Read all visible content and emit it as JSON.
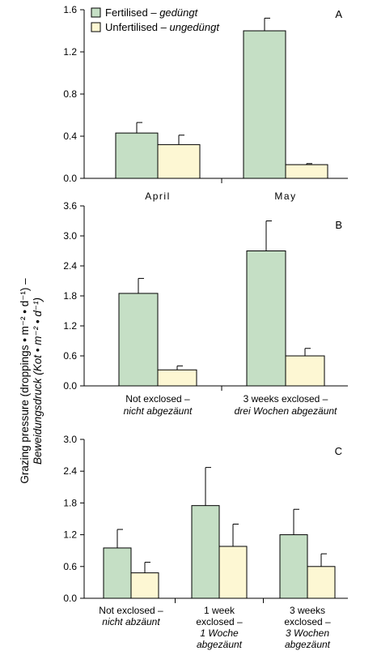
{
  "colors": {
    "fertilised": "#c5dfc5",
    "unfertilised": "#fdf7d3",
    "stroke": "#000000"
  },
  "y_label": {
    "line1": "Grazing pressure (droppings • m⁻² • d⁻¹) –",
    "line2": "Beweidungsdruck (Kot • m⁻² • d⁻¹)"
  },
  "legend": {
    "items": [
      {
        "main": "Fertilised – ",
        "italic": "gedüngt"
      },
      {
        "main": "Unfertilised – ",
        "italic": "ungedüngt"
      }
    ]
  },
  "chart_data": [
    {
      "type": "bar",
      "panel": "A",
      "ylim": [
        0,
        1.6
      ],
      "yticks": [
        "0.0",
        "0.4",
        "0.8",
        "1.2",
        "1.6"
      ],
      "categories": [
        {
          "lines": [
            {
              "text": "April",
              "italic": false
            }
          ]
        },
        {
          "lines": [
            {
              "text": "May",
              "italic": false
            }
          ]
        }
      ],
      "series": [
        {
          "name": "Fertilised – gedüngt",
          "values": [
            0.43,
            1.4
          ],
          "errors": [
            0.1,
            0.12
          ]
        },
        {
          "name": "Unfertilised – ungedüngt",
          "values": [
            0.32,
            0.13
          ],
          "errors": [
            0.09,
            0.01
          ]
        }
      ]
    },
    {
      "type": "bar",
      "panel": "B",
      "ylim": [
        0,
        3.6
      ],
      "yticks": [
        "0.0",
        "0.6",
        "1.2",
        "1.8",
        "2.4",
        "3.0",
        "3.6"
      ],
      "categories": [
        {
          "lines": [
            {
              "text": "Not exclosed –",
              "italic": false
            },
            {
              "text": "nicht abgezäunt",
              "italic": true
            }
          ]
        },
        {
          "lines": [
            {
              "text": "3 weeks exclosed –",
              "italic": false
            },
            {
              "text": "drei Wochen abgezäunt",
              "italic": true
            }
          ]
        }
      ],
      "series": [
        {
          "name": "Fertilised – gedüngt",
          "values": [
            1.85,
            2.7
          ],
          "errors": [
            0.3,
            0.6
          ]
        },
        {
          "name": "Unfertilised – ungedüngt",
          "values": [
            0.32,
            0.6
          ],
          "errors": [
            0.08,
            0.15
          ]
        }
      ]
    },
    {
      "type": "bar",
      "panel": "C",
      "ylim": [
        0,
        3.0
      ],
      "yticks": [
        "0.0",
        "0.6",
        "1.2",
        "1.8",
        "2.4",
        "3.0"
      ],
      "categories": [
        {
          "lines": [
            {
              "text": "Not exclosed –",
              "italic": false
            },
            {
              "text": "nicht abzäunt",
              "italic": true
            }
          ]
        },
        {
          "lines": [
            {
              "text": "1 week",
              "italic": false
            },
            {
              "text": "exclosed –",
              "italic": false
            },
            {
              "text": "1 Woche",
              "italic": true
            },
            {
              "text": "abgezäunt",
              "italic": true
            }
          ]
        },
        {
          "lines": [
            {
              "text": "3 weeks",
              "italic": false
            },
            {
              "text": "exclosed –",
              "italic": false
            },
            {
              "text": "3 Wochen",
              "italic": true
            },
            {
              "text": "abgezäunt",
              "italic": true
            }
          ]
        }
      ],
      "series": [
        {
          "name": "Fertilised – gedüngt",
          "values": [
            0.95,
            1.75,
            1.2
          ],
          "errors": [
            0.35,
            0.72,
            0.48
          ]
        },
        {
          "name": "Unfertilised – ungedüngt",
          "values": [
            0.48,
            0.98,
            0.6
          ],
          "errors": [
            0.2,
            0.42,
            0.24
          ]
        }
      ]
    }
  ]
}
